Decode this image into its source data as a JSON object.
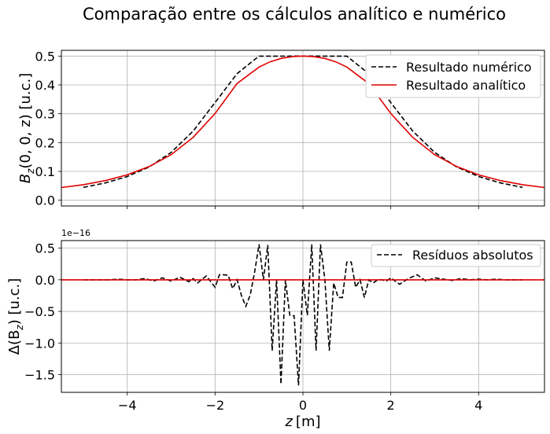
{
  "figure": {
    "title": "Comparação entre os cálculos analítico e numérico"
  },
  "chart_data": [
    {
      "type": "line",
      "ylabel_main": "B",
      "ylabel_sub": "z",
      "ylabel_rest": "(0, 0, z) [u.c.]",
      "xlim": [
        -5.5,
        5.5
      ],
      "ylim": [
        -0.02,
        0.52
      ],
      "xticks": [
        -4,
        -2,
        0,
        2,
        4
      ],
      "yticks": [
        0.0,
        0.1,
        0.2,
        0.3,
        0.4,
        0.5
      ],
      "ytick_labels": [
        "0.0",
        "0.1",
        "0.2",
        "0.3",
        "0.4",
        "0.5"
      ],
      "grid": true,
      "legend_position": "top-right",
      "series": [
        {
          "name": "Resultado numérico",
          "color": "#000000",
          "style": "dashed",
          "x": [
            -5,
            -4.5,
            -4,
            -3.5,
            -3,
            -2.5,
            -2,
            -1.5,
            -1,
            -0.5,
            0,
            0.5,
            1,
            1.5,
            2,
            2.5,
            3,
            3.5,
            4,
            4.5,
            5
          ],
          "y": [
            0.0445,
            0.0599,
            0.0822,
            0.1154,
            0.1656,
            0.2398,
            0.3392,
            0.439,
            0.4998,
            0.4998,
            0.5,
            0.4998,
            0.4998,
            0.439,
            0.3392,
            0.2398,
            0.1656,
            0.1154,
            0.0822,
            0.0599,
            0.0445
          ]
        },
        {
          "name": "Resultado analítico",
          "color": "#e00000",
          "style": "solid",
          "x": [
            -5.5,
            -5,
            -4.5,
            -4,
            -3.5,
            -3,
            -2.5,
            -2,
            -1.5,
            -1,
            -0.75,
            -0.5,
            -0.25,
            0,
            0.25,
            0.5,
            0.75,
            1,
            1.5,
            2,
            2.5,
            3,
            3.5,
            4,
            4.5,
            5,
            5.5
          ],
          "y": [
            0.044,
            0.054,
            0.068,
            0.088,
            0.117,
            0.158,
            0.218,
            0.301,
            0.405,
            0.462,
            0.48,
            0.492,
            0.498,
            0.5,
            0.498,
            0.492,
            0.48,
            0.462,
            0.405,
            0.301,
            0.218,
            0.158,
            0.117,
            0.088,
            0.068,
            0.054,
            0.044
          ]
        }
      ]
    },
    {
      "type": "line",
      "xlabel_main": "z",
      "xlabel_rest": "[m]",
      "ylabel_main": "Δ(B",
      "ylabel_sub": "z",
      "ylabel_rest": ") [u.c.]",
      "offset_text": "1e−16",
      "xlim": [
        -5.5,
        5.5
      ],
      "ylim": [
        -1.78,
        0.62
      ],
      "xticks": [
        -4,
        -2,
        0,
        2,
        4
      ],
      "xtick_labels": [
        "−4",
        "−2",
        "0",
        "2",
        "4"
      ],
      "yticks": [
        0.5,
        0.0,
        -0.5,
        -1.0,
        -1.5
      ],
      "ytick_labels": [
        "0.5",
        "0.0",
        "−0.5",
        "−1.0",
        "−1.5"
      ],
      "grid": true,
      "legend_position": "top-right",
      "series": [
        {
          "name": "Resíduos absolutos",
          "color": "#000000",
          "style": "dashed",
          "x": [
            -5,
            -4.8,
            -4.6,
            -4.4,
            -4.2,
            -4.0,
            -3.8,
            -3.6,
            -3.4,
            -3.2,
            -3.0,
            -2.8,
            -2.6,
            -2.5,
            -2.4,
            -2.2,
            -2.0,
            -1.9,
            -1.8,
            -1.7,
            -1.6,
            -1.5,
            -1.4,
            -1.3,
            -1.2,
            -1.1,
            -1.0,
            -0.9,
            -0.8,
            -0.7,
            -0.6,
            -0.5,
            -0.4,
            -0.3,
            -0.2,
            -0.1,
            0.0,
            0.1,
            0.2,
            0.3,
            0.4,
            0.5,
            0.6,
            0.7,
            0.8,
            0.9,
            1.0,
            1.1,
            1.2,
            1.3,
            1.4,
            1.5,
            1.6,
            1.7,
            1.8,
            1.9,
            2.0,
            2.2,
            2.4,
            2.6,
            2.8,
            3.0,
            3.2,
            3.4,
            3.6,
            3.8,
            4.0,
            4.2,
            4.4,
            4.6,
            4.8,
            5.0
          ],
          "y": [
            0,
            0,
            0,
            0,
            0.01,
            0,
            0,
            0.02,
            -0.02,
            0.03,
            -0.02,
            0.04,
            -0.03,
            0.02,
            -0.05,
            0.06,
            -0.12,
            0.08,
            0.08,
            0.07,
            -0.14,
            0.0,
            -0.25,
            -0.42,
            -0.24,
            0.12,
            0.56,
            0.0,
            0.55,
            -1.12,
            0.0,
            -1.65,
            0.0,
            -0.56,
            -0.57,
            -1.67,
            0.0,
            -0.56,
            0.56,
            -1.12,
            0.56,
            0.0,
            -1.12,
            -0.05,
            -0.28,
            -0.28,
            0.28,
            0.28,
            -0.12,
            0.0,
            -0.28,
            0.0,
            -0.05,
            0.0,
            0.0,
            -0.02,
            0.03,
            -0.07,
            0.02,
            0.08,
            -0.02,
            0.03,
            0.01,
            -0.01,
            0.02,
            0,
            0.01,
            0,
            0.01,
            0,
            0,
            0
          ]
        },
        {
          "name": "",
          "color": "#e00000",
          "style": "solid",
          "x": [
            -5.5,
            5.5
          ],
          "y": [
            0,
            0
          ]
        }
      ]
    }
  ]
}
